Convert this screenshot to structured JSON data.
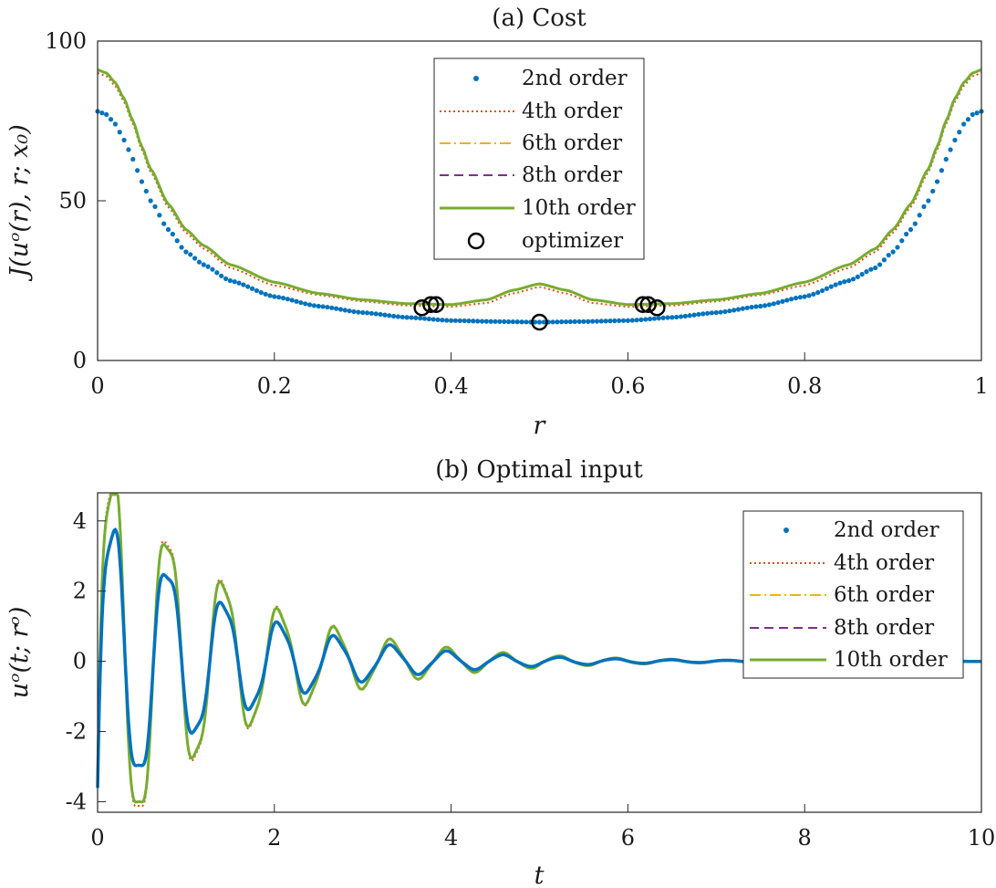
{
  "figure": {
    "background": "#ffffff"
  },
  "chart_data": [
    {
      "type": "line",
      "id": "cost",
      "title": "(a) Cost",
      "xlabel": "r",
      "ylabel": "J(uᵒ(r), r; x₀)",
      "xlim": [
        0,
        1
      ],
      "ylim": [
        0,
        100
      ],
      "xticks": [
        0,
        0.2,
        0.4,
        0.6,
        0.8,
        1
      ],
      "xtick_labels": [
        "0",
        "0.2",
        "0.4",
        "0.6",
        "0.8",
        "1"
      ],
      "yticks": [
        0,
        50,
        100
      ],
      "ytick_labels": [
        "0",
        "50",
        "100"
      ],
      "grid": false,
      "legend_position": "top-center",
      "legend": [
        {
          "label": "2nd order",
          "style": "dots",
          "color": "#0072BD"
        },
        {
          "label": "4th order",
          "style": "dotted",
          "color": "#D95319"
        },
        {
          "label": "6th order",
          "style": "dashdot",
          "color": "#EDB120"
        },
        {
          "label": "8th order",
          "style": "dashed",
          "color": "#7E2F8E"
        },
        {
          "label": "10th order",
          "style": "solid",
          "color": "#77AC30"
        },
        {
          "label": "optimizer",
          "style": "circle",
          "color": "#000000"
        }
      ],
      "series": [
        {
          "name": "2nd order",
          "x": [
            0,
            0.01,
            0.02,
            0.03,
            0.04,
            0.05,
            0.06,
            0.08,
            0.1,
            0.12,
            0.15,
            0.2,
            0.25,
            0.3,
            0.35,
            0.4,
            0.45,
            0.5,
            0.55,
            0.6,
            0.65,
            0.7,
            0.75,
            0.8,
            0.85,
            0.88,
            0.9,
            0.92,
            0.94,
            0.95,
            0.96,
            0.97,
            0.98,
            0.99,
            1
          ],
          "y": [
            78,
            77,
            74,
            69,
            63,
            56,
            50,
            41,
            34,
            30,
            25,
            20,
            17,
            15,
            13.5,
            12.5,
            12.2,
            12,
            12.2,
            12.5,
            13.5,
            15,
            17,
            20,
            25,
            29,
            34,
            41,
            50,
            56,
            63,
            69,
            74,
            77,
            78
          ]
        },
        {
          "name": "4th order",
          "x": [
            0,
            0.01,
            0.02,
            0.03,
            0.04,
            0.05,
            0.06,
            0.08,
            0.1,
            0.12,
            0.15,
            0.2,
            0.25,
            0.3,
            0.35,
            0.4,
            0.44,
            0.47,
            0.5,
            0.53,
            0.56,
            0.6,
            0.65,
            0.7,
            0.75,
            0.8,
            0.85,
            0.88,
            0.9,
            0.92,
            0.94,
            0.95,
            0.96,
            0.97,
            0.98,
            0.99,
            1
          ],
          "y": [
            90,
            89,
            86,
            81,
            74,
            66,
            59,
            48,
            40,
            35,
            29,
            23.5,
            20.5,
            18.5,
            17.2,
            16.8,
            18,
            21,
            23,
            21,
            18,
            16.8,
            17.2,
            18.5,
            20.5,
            23.5,
            29,
            34,
            40,
            48,
            59,
            66,
            74,
            81,
            86,
            89,
            90
          ]
        },
        {
          "name": "6th order",
          "x": [
            0,
            0.01,
            0.02,
            0.03,
            0.04,
            0.05,
            0.06,
            0.08,
            0.1,
            0.12,
            0.15,
            0.2,
            0.25,
            0.3,
            0.35,
            0.4,
            0.44,
            0.47,
            0.5,
            0.53,
            0.56,
            0.6,
            0.65,
            0.7,
            0.75,
            0.8,
            0.85,
            0.88,
            0.9,
            0.92,
            0.94,
            0.95,
            0.96,
            0.97,
            0.98,
            0.99,
            1
          ],
          "y": [
            91,
            90,
            87,
            82,
            75,
            67,
            60,
            49,
            41,
            36,
            30,
            24.5,
            21,
            19,
            17.8,
            17.5,
            19,
            22,
            24,
            22,
            19,
            17.5,
            17.8,
            19,
            21,
            24.5,
            30,
            35,
            41,
            49,
            60,
            67,
            75,
            82,
            87,
            90,
            91
          ]
        },
        {
          "name": "8th order",
          "x": [
            0,
            0.01,
            0.02,
            0.03,
            0.04,
            0.05,
            0.06,
            0.08,
            0.1,
            0.12,
            0.15,
            0.2,
            0.25,
            0.3,
            0.35,
            0.4,
            0.44,
            0.47,
            0.5,
            0.53,
            0.56,
            0.6,
            0.65,
            0.7,
            0.75,
            0.8,
            0.85,
            0.88,
            0.9,
            0.92,
            0.94,
            0.95,
            0.96,
            0.97,
            0.98,
            0.99,
            1
          ],
          "y": [
            91,
            90,
            87,
            82,
            75,
            67,
            60,
            49,
            41,
            36,
            30,
            24.5,
            21,
            19,
            17.8,
            17.5,
            19,
            22,
            24,
            22,
            19,
            17.5,
            17.8,
            19,
            21,
            24.5,
            30,
            35,
            41,
            49,
            60,
            67,
            75,
            82,
            87,
            90,
            91
          ]
        },
        {
          "name": "10th order",
          "x": [
            0,
            0.01,
            0.02,
            0.03,
            0.04,
            0.05,
            0.06,
            0.08,
            0.1,
            0.12,
            0.15,
            0.2,
            0.25,
            0.3,
            0.35,
            0.4,
            0.44,
            0.47,
            0.5,
            0.53,
            0.56,
            0.6,
            0.65,
            0.7,
            0.75,
            0.8,
            0.85,
            0.88,
            0.9,
            0.92,
            0.94,
            0.95,
            0.96,
            0.97,
            0.98,
            0.99,
            1
          ],
          "y": [
            91,
            90,
            87,
            82,
            75,
            67,
            60,
            49,
            41,
            36,
            30,
            24.5,
            21,
            19,
            17.8,
            17.5,
            19,
            22,
            24,
            22,
            19,
            17.5,
            17.8,
            19,
            21,
            24.5,
            30,
            35,
            41,
            49,
            60,
            67,
            75,
            82,
            87,
            90,
            91
          ]
        }
      ],
      "optimizers": {
        "x": [
          0.367,
          0.377,
          0.383,
          0.5,
          0.617,
          0.623,
          0.633
        ],
        "y": [
          16.5,
          17.5,
          17.5,
          12,
          17.5,
          17.5,
          16.5
        ]
      }
    },
    {
      "type": "line",
      "id": "input",
      "title": "(b) Optimal input",
      "xlabel": "t",
      "ylabel": "uᵒ(t; rᵒ)",
      "xlim": [
        0,
        10
      ],
      "ylim": [
        -4.3,
        4.8
      ],
      "xticks": [
        0,
        2,
        4,
        6,
        8,
        10
      ],
      "xtick_labels": [
        "0",
        "2",
        "4",
        "6",
        "8",
        "10"
      ],
      "yticks": [
        -4,
        -2,
        0,
        2,
        4
      ],
      "ytick_labels": [
        "-4",
        "-2",
        "0",
        "2",
        "4"
      ],
      "grid": false,
      "legend_position": "top-right",
      "legend": [
        {
          "label": "2nd order",
          "style": "dots",
          "color": "#0072BD"
        },
        {
          "label": "4th order",
          "style": "dotted",
          "color": "#D95319"
        },
        {
          "label": "6th order",
          "style": "dashdot",
          "color": "#EDB120"
        },
        {
          "label": "8th order",
          "style": "dashed",
          "color": "#7E2F8E"
        },
        {
          "label": "10th order",
          "style": "solid",
          "color": "#77AC30"
        }
      ],
      "signal": {
        "description_model": "damped oscillation with slower overlay",
        "offset": -4.0,
        "offset_decay": 18,
        "fast_amp": 4.8,
        "fast_decay": 0.72,
        "fast_freq": 1.58,
        "slow_amp": 0.7,
        "slow_decay": 0.9,
        "slow_freq": 4.6,
        "higher_order_gain": 1.35,
        "sample_step": 0.01
      },
      "series_names": [
        "2nd order",
        "4th order",
        "6th order",
        "8th order",
        "10th order"
      ]
    }
  ]
}
